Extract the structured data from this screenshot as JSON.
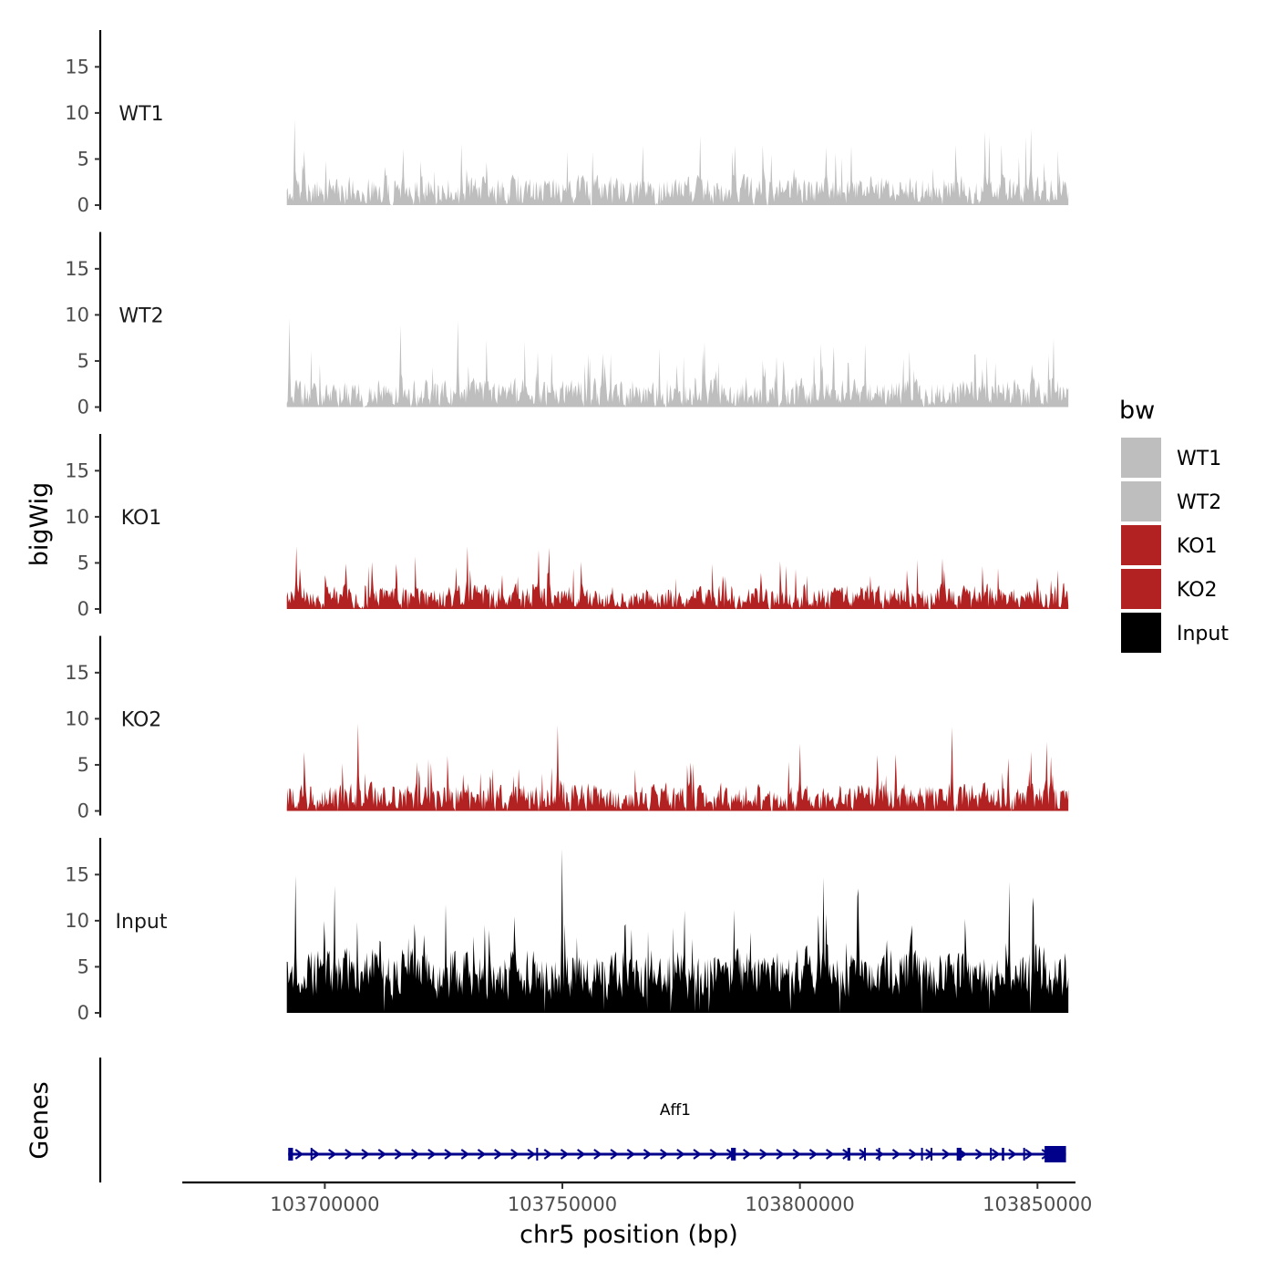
{
  "chart_data": {
    "type": "area",
    "description_free": true,
    "ylabel": "bigWig",
    "xlabel": "chr5 position (bp)",
    "x_range": [
      103670000,
      103858000
    ],
    "data_range": [
      103692000,
      103856500
    ],
    "x_ticks": [
      103700000,
      103750000,
      103800000,
      103850000
    ],
    "x_tick_labels": [
      "103700000",
      "103750000",
      "103800000",
      "103850000"
    ],
    "y_ticks": [
      0,
      5,
      10,
      15
    ],
    "y_tick_labels": [
      "0",
      "5",
      "10",
      "15"
    ],
    "ylim": [
      0,
      18.5
    ],
    "tracks": [
      {
        "name": "WT1",
        "label": "WT1",
        "color": "#bebebe",
        "seed": 11,
        "base": 1.6,
        "spread": 1.9,
        "peak_prob": 0.05,
        "peak_max": 5.5,
        "highlights": [
          [
            103693700,
            9.3
          ],
          [
            103839000,
            8.0
          ],
          [
            103848700,
            8.3
          ],
          [
            103767000,
            6.5
          ],
          [
            103794000,
            5.5
          ]
        ]
      },
      {
        "name": "WT2",
        "label": "WT2",
        "color": "#bebebe",
        "seed": 23,
        "base": 1.5,
        "spread": 1.9,
        "peak_prob": 0.05,
        "peak_max": 5.0,
        "highlights": [
          [
            103692500,
            9.6
          ],
          [
            103716000,
            8.9
          ],
          [
            103728000,
            9.4
          ],
          [
            103780000,
            7.1
          ],
          [
            103795000,
            5.5
          ]
        ]
      },
      {
        "name": "KO1",
        "label": "KO1",
        "color": "#b22222",
        "seed": 37,
        "base": 1.3,
        "spread": 1.6,
        "peak_prob": 0.05,
        "peak_max": 4.3,
        "highlights": [
          [
            103694000,
            6.8
          ],
          [
            103730000,
            6.8
          ],
          [
            103745000,
            6.4
          ],
          [
            103830000,
            5.5
          ],
          [
            103850000,
            3.4
          ]
        ]
      },
      {
        "name": "KO2",
        "label": "KO2",
        "color": "#b22222",
        "seed": 53,
        "base": 1.5,
        "spread": 1.9,
        "peak_prob": 0.05,
        "peak_max": 5.0,
        "highlights": [
          [
            103707000,
            9.5
          ],
          [
            103749000,
            9.3
          ],
          [
            103800000,
            7.3
          ],
          [
            103832000,
            9.1
          ],
          [
            103852000,
            7.5
          ]
        ]
      },
      {
        "name": "Input",
        "label": "Input",
        "color": "#000000",
        "seed": 71,
        "base": 4.3,
        "spread": 3.4,
        "peak_prob": 0.07,
        "peak_max": 7.0,
        "highlights": [
          [
            103750000,
            17.8
          ],
          [
            103693800,
            14.9
          ],
          [
            103702000,
            13.8
          ],
          [
            103805000,
            14.7
          ],
          [
            103844000,
            14.2
          ],
          [
            103812000,
            12.6
          ]
        ]
      }
    ],
    "legend": {
      "title": "bw",
      "position": "right",
      "entries": [
        {
          "label": "WT1",
          "color": "#bebebe"
        },
        {
          "label": "WT2",
          "color": "#bebebe"
        },
        {
          "label": "KO1",
          "color": "#b22222"
        },
        {
          "label": "KO2",
          "color": "#b22222"
        },
        {
          "label": "Input",
          "color": "#000000"
        }
      ]
    },
    "genes_panel": {
      "title": "Genes",
      "gene": {
        "name": "Aff1",
        "strand": "+",
        "start": 103692300,
        "end": 103856000,
        "color": "#00008b",
        "exons": [
          [
            103692300,
            103693300
          ],
          [
            103697000,
            103697300
          ],
          [
            103744500,
            103744800
          ],
          [
            103785500,
            103786500
          ],
          [
            103810000,
            103810600
          ],
          [
            103813500,
            103813800
          ],
          [
            103816500,
            103816800
          ],
          [
            103825500,
            103825800
          ],
          [
            103827500,
            103827800
          ],
          [
            103833000,
            103834000
          ],
          [
            103840000,
            103840300
          ],
          [
            103842500,
            103843000
          ],
          [
            103847000,
            103847300
          ],
          [
            103851500,
            103856000
          ]
        ]
      }
    }
  }
}
